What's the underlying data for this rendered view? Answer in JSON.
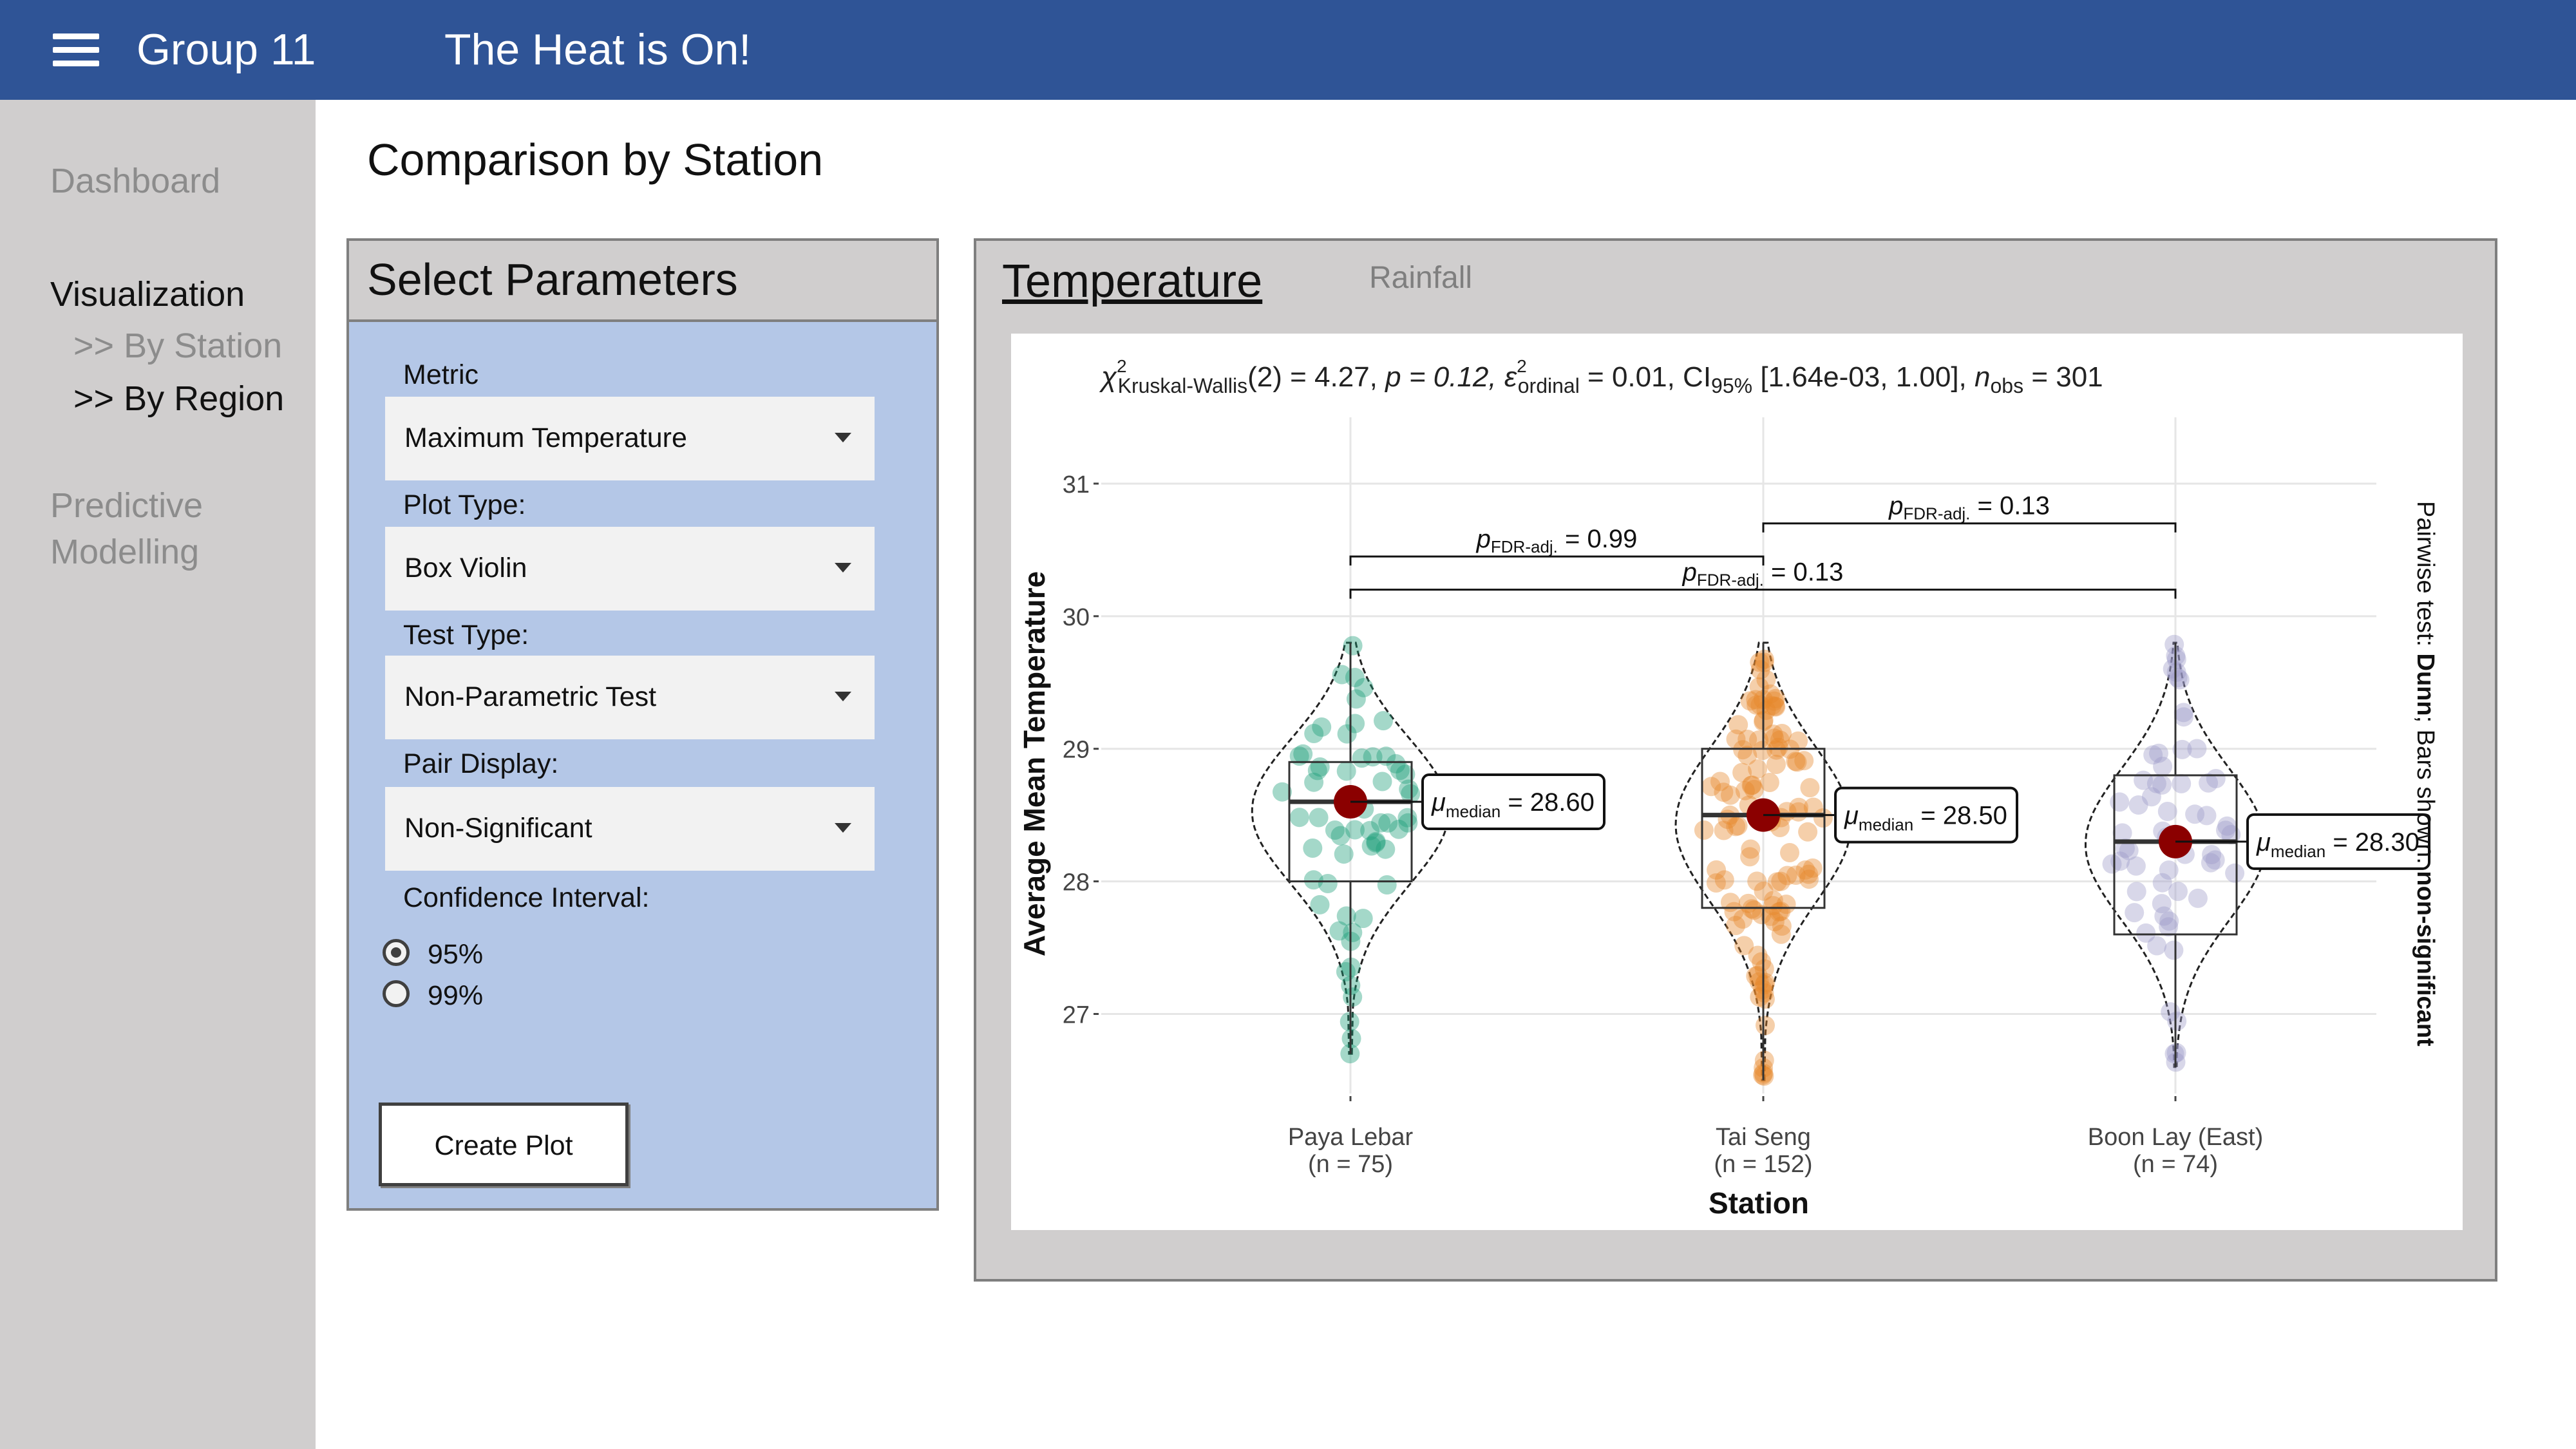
{
  "header": {
    "app_title": "Group 11",
    "page_title": "The Heat is On!"
  },
  "sidebar": {
    "dashboard": "Dashboard",
    "visualization": "Visualization",
    "by_station": ">> By Station",
    "by_region": ">> By Region",
    "predictive": "Predictive",
    "modelling": "Modelling"
  },
  "main": {
    "title": "Comparison by Station"
  },
  "params": {
    "heading": "Select Parameters",
    "metric_label": "Metric",
    "metric_value": "Maximum Temperature",
    "plot_type_label": "Plot Type:",
    "plot_type_value": "Box Violin",
    "test_type_label": "Test Type:",
    "test_type_value": "Non-Parametric Test",
    "pair_display_label": "Pair Display:",
    "pair_display_value": "Non-Significant",
    "ci_label": "Confidence Interval:",
    "ci_options": [
      "95%",
      "99%"
    ],
    "ci_selected": "95%",
    "create_button": "Create Plot"
  },
  "tabs": {
    "active": "Temperature",
    "inactive": "Rainfall"
  },
  "chart_data": {
    "type": "box-violin",
    "subtitle_parts": {
      "chi": "χ",
      "chi_sup": "2",
      "chi_sub": "Kruskal-Wallis",
      "df_stat": "(2) = 4.27, ",
      "p_part": "p = 0.12, ",
      "eps": "ε",
      "eps_sup": "2",
      "eps_sub": "ordinal",
      "eps_val": " = 0.01, CI",
      "ci_sub": "95%",
      "ci_val": " [1.64e-03, 1.00], ",
      "n": "n",
      "n_sub": "obs",
      "n_val": " = 301"
    },
    "xlabel": "Station",
    "ylabel": "Average Mean Temperature",
    "caption_parts": [
      "Pairwise test: ",
      "Dunn",
      "; Bars shown: ",
      "non-significant"
    ],
    "ylim": [
      26.4,
      31.5
    ],
    "yticks": [
      27,
      28,
      29,
      30,
      31
    ],
    "categories": [
      "Paya Lebar",
      "Tai Seng",
      "Boon Lay (East)"
    ],
    "n_labels": [
      "(n = 75)",
      "(n = 152)",
      "(n = 74)"
    ],
    "colors": [
      "#1b9e77",
      "#e6862a",
      "#9e9ac8"
    ],
    "medians": [
      28.6,
      28.5,
      28.3
    ],
    "median_labels": [
      "28.60",
      "28.50",
      "28.30"
    ],
    "boxes": [
      {
        "q1": 28.0,
        "q3": 28.9,
        "min": 26.7,
        "max": 29.8
      },
      {
        "q1": 27.8,
        "q3": 29.0,
        "min": 26.5,
        "max": 29.8
      },
      {
        "q1": 27.6,
        "q3": 28.8,
        "min": 26.6,
        "max": 29.8
      }
    ],
    "pairwise": [
      {
        "from": 0,
        "to": 1,
        "label_pre": "p",
        "label_sub": "FDR-adj.",
        "label_val": " = 0.99",
        "y": 30.45
      },
      {
        "from": 1,
        "to": 2,
        "label_pre": "p",
        "label_sub": "FDR-adj.",
        "label_val": " = 0.13",
        "y": 30.7
      },
      {
        "from": 0,
        "to": 2,
        "label_pre": "p",
        "label_sub": "FDR-adj.",
        "label_val": " = 0.13",
        "y": 30.2
      }
    ],
    "median_symbol": "μ",
    "median_sub": "median",
    "median_eq": " = "
  }
}
